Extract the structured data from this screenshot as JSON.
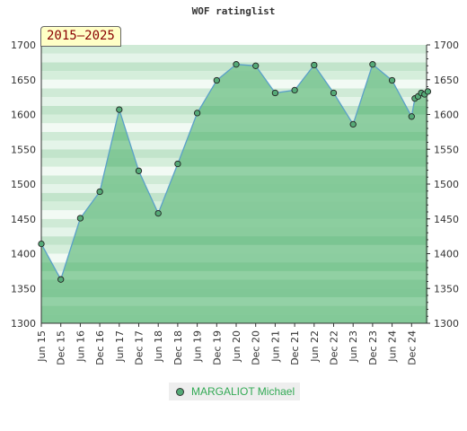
{
  "chart_data": {
    "type": "area",
    "title": "WOF ratinglist",
    "period_label": "2015–2025",
    "ylim": [
      1300,
      1700
    ],
    "yticks": [
      1300,
      1350,
      1400,
      1450,
      1500,
      1550,
      1600,
      1650,
      1700
    ],
    "xtick_labels": [
      "Jun 15",
      "Dec 15",
      "Jun 16",
      "Dec 16",
      "Jun 17",
      "Dec 17",
      "Jun 18",
      "Dec 18",
      "Jun 19",
      "Dec 19",
      "Jun 20",
      "Dec 20",
      "Jun 21",
      "Dec 21",
      "Jun 22",
      "Dec 22",
      "Jun 23",
      "Dec 23",
      "Jun 24",
      "Dec 24"
    ],
    "grid": true,
    "legend_position": "bottom",
    "series": [
      {
        "name": "MARGALIOT Michael",
        "color": "#55aa77",
        "points": [
          {
            "x": "Jun 15",
            "y": 1414
          },
          {
            "x": "Dec 15",
            "y": 1363
          },
          {
            "x": "Jun 16",
            "y": 1451
          },
          {
            "x": "Dec 16",
            "y": 1489
          },
          {
            "x": "Jun 17",
            "y": 1607
          },
          {
            "x": "Dec 17",
            "y": 1519
          },
          {
            "x": "Jun 18",
            "y": 1458
          },
          {
            "x": "Dec 18",
            "y": 1529
          },
          {
            "x": "Jun 19",
            "y": 1602
          },
          {
            "x": "Dec 19",
            "y": 1649
          },
          {
            "x": "Jun 20",
            "y": 1672
          },
          {
            "x": "Dec 20",
            "y": 1670
          },
          {
            "x": "Jun 21",
            "y": 1631
          },
          {
            "x": "Dec 21",
            "y": 1635
          },
          {
            "x": "Jun 22",
            "y": 1671
          },
          {
            "x": "Dec 22",
            "y": 1631
          },
          {
            "x": "Jun 23",
            "y": 1586
          },
          {
            "x": "Dec 23",
            "y": 1672
          },
          {
            "x": "Jun 24",
            "y": 1649
          },
          {
            "x": "Dec 24",
            "y": 1597
          },
          {
            "x": "Jan 25",
            "y": 1623
          },
          {
            "x": "Feb 25",
            "y": 1626
          },
          {
            "x": "Mar 25",
            "y": 1631
          },
          {
            "x": "Apr 25",
            "y": 1629
          },
          {
            "x": "May 25",
            "y": 1633
          }
        ]
      }
    ]
  }
}
